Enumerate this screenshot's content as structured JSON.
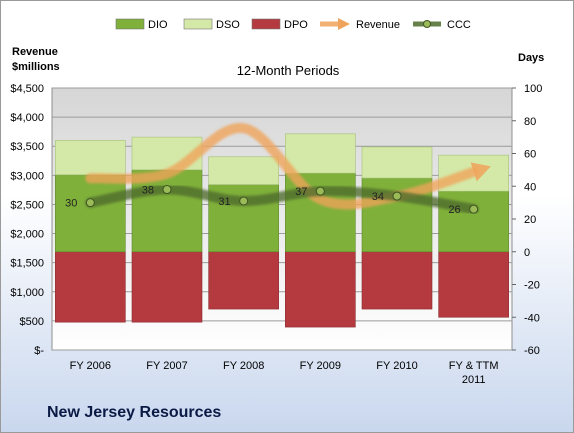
{
  "company": "New Jersey Resources",
  "chart_data": {
    "type": "bar",
    "title": "12-Month Periods",
    "categories": [
      "FY 2006",
      "FY 2007",
      "FY 2008",
      "FY 2009",
      "FY 2010",
      "FY & TTM 2011"
    ],
    "y_left_label": "Revenue $millions",
    "y_right_label": "Days",
    "y_left_ticks": [
      "$-",
      "$500",
      "$1,000",
      "$1,500",
      "$2,000",
      "$2,500",
      "$3,000",
      "$3,500",
      "$4,000",
      "$4,500"
    ],
    "ylim_left": [
      0,
      4500
    ],
    "ylim_right": [
      -60,
      100
    ],
    "y_right_ticks": [
      -60,
      -40,
      -20,
      0,
      20,
      40,
      60,
      80,
      100
    ],
    "legend_position": "top",
    "grid": true,
    "series": [
      {
        "name": "DIO",
        "kind": "stacked-bar",
        "axis": "right",
        "values": [
          47,
          50,
          41,
          48,
          45,
          37
        ],
        "color": "#7fb03a"
      },
      {
        "name": "DSO",
        "kind": "stacked-bar",
        "axis": "right",
        "values": [
          21,
          20,
          17,
          24,
          19,
          22
        ],
        "color": "#d4e9a8"
      },
      {
        "name": "DPO",
        "kind": "negative-bar",
        "axis": "right",
        "values": [
          -43,
          -43,
          -35,
          -46,
          -35,
          -40
        ],
        "color": "#b43a40"
      },
      {
        "name": "Revenue",
        "kind": "line",
        "axis": "left",
        "values": [
          2950,
          3030,
          3810,
          2590,
          2640,
          3060
        ],
        "color": "#f0a35a"
      },
      {
        "name": "CCC",
        "kind": "line",
        "axis": "right",
        "values": [
          30,
          38,
          31,
          37,
          34,
          26
        ],
        "labels": [
          "30",
          "38",
          "31",
          "37",
          "34",
          "26"
        ],
        "color": "#4d6a2a"
      }
    ]
  }
}
